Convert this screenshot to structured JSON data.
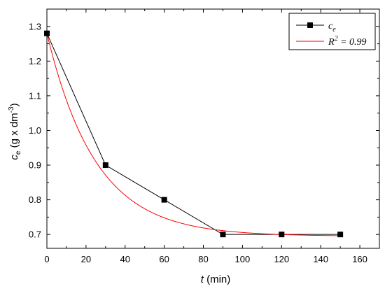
{
  "chart_data": {
    "type": "line",
    "xlabel": {
      "var": "t",
      "unit": " (min)"
    },
    "ylabel": {
      "var": "c",
      "sub": "e",
      "unit_pre": " (g x dm",
      "unit_sup": "-3",
      "unit_post": ")"
    },
    "xlim": [
      0,
      170
    ],
    "ylim": [
      0.66,
      1.35
    ],
    "x_ticks": [
      0,
      20,
      40,
      60,
      80,
      100,
      120,
      140,
      160
    ],
    "y_ticks": [
      0.7,
      0.8,
      0.9,
      1.0,
      1.1,
      1.2,
      1.3
    ],
    "y_tick_labels": [
      "0.7",
      "0.8",
      "0.9",
      "1.0",
      "1.1",
      "1.2",
      "1.3"
    ],
    "legend_position": "top-right",
    "series": [
      {
        "name": "ce",
        "name_parts": {
          "main": "c",
          "sub": "e"
        },
        "color": "#000000",
        "marker": "square",
        "x": [
          0,
          30,
          60,
          90,
          120,
          150
        ],
        "y": [
          1.28,
          0.9,
          0.8,
          0.7,
          0.7,
          0.7
        ]
      },
      {
        "name": "R2 = 0.99",
        "name_parts": {
          "main": "R",
          "sup": "2",
          "rest": " = 0.99"
        },
        "color": "#ff0000",
        "marker": "none",
        "fit": "exponential",
        "fit_params": {
          "y0": 0.695,
          "A": 0.585,
          "tau": 25
        },
        "x_range": [
          0,
          150
        ]
      }
    ]
  }
}
